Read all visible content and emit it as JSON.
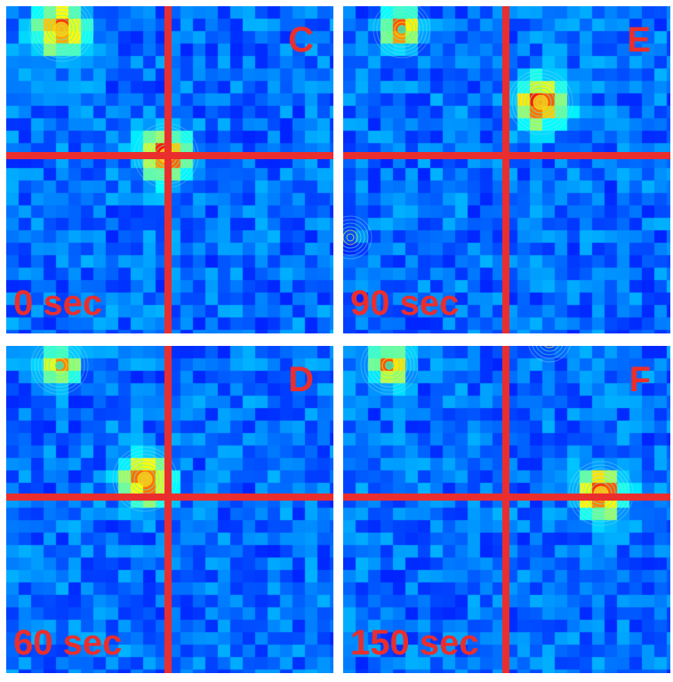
{
  "panels": [
    {
      "letter": "C",
      "time_label": "0 sec"
    },
    {
      "letter": "E",
      "time_label": "90 sec"
    },
    {
      "letter": "D",
      "time_label": "60 sec"
    },
    {
      "letter": "F",
      "time_label": "150 sec"
    }
  ],
  "colors": {
    "background_dark": "#1f3a9a",
    "crosshair": "#ea2e2e",
    "label": "#ea2e2e"
  }
}
